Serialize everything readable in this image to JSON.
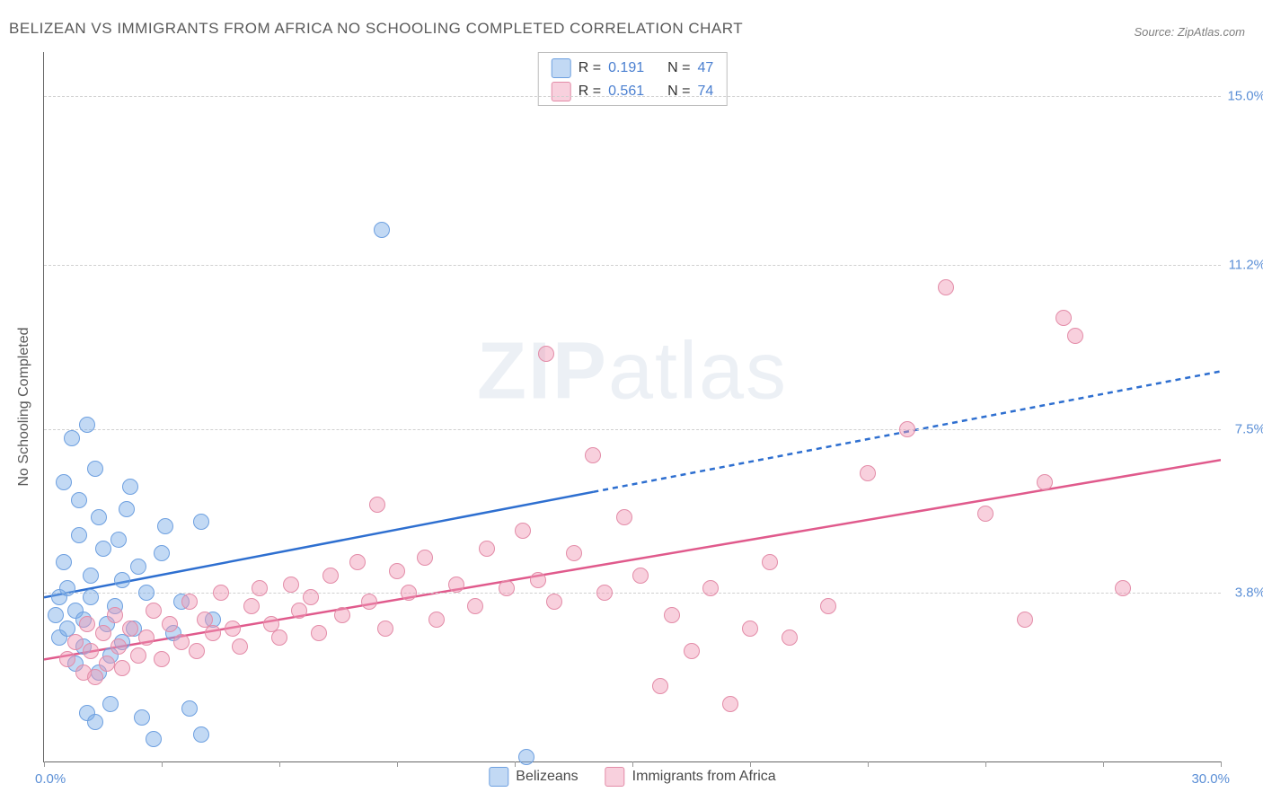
{
  "title": "BELIZEAN VS IMMIGRANTS FROM AFRICA NO SCHOOLING COMPLETED CORRELATION CHART",
  "source_label": "Source: ZipAtlas.com",
  "watermark": {
    "bold": "ZIP",
    "light": "atlas"
  },
  "y_axis_title": "No Schooling Completed",
  "xlim": [
    0.0,
    30.0
  ],
  "ylim": [
    0.0,
    16.0
  ],
  "x_min_label": "0.0%",
  "x_max_label": "30.0%",
  "y_ticks": [
    {
      "val": 3.8,
      "label": "3.8%"
    },
    {
      "val": 7.5,
      "label": "7.5%"
    },
    {
      "val": 11.2,
      "label": "11.2%"
    },
    {
      "val": 15.0,
      "label": "15.0%"
    }
  ],
  "x_tick_vals": [
    0,
    3,
    6,
    9,
    12,
    15,
    18,
    21,
    24,
    27,
    30
  ],
  "background_color": "#ffffff",
  "grid_color": "#d0d0d0",
  "axis_color": "#666666",
  "marker_radius": 8,
  "marker_opacity": 0.55,
  "line_width": 2.5,
  "series": [
    {
      "key": "belizeans",
      "label": "Belizeans",
      "fill": "rgba(120,170,230,0.45)",
      "stroke": "#6ea0e0",
      "line_color": "#2e6fd0",
      "r_value": "0.191",
      "n_value": "47",
      "trend": {
        "x1": 0,
        "y1": 3.7,
        "x2": 30,
        "y2": 8.8,
        "dash_after_x": 14
      },
      "points": [
        [
          0.3,
          3.3
        ],
        [
          0.4,
          2.8
        ],
        [
          0.4,
          3.7
        ],
        [
          0.5,
          4.5
        ],
        [
          0.6,
          3.0
        ],
        [
          0.6,
          3.9
        ],
        [
          0.7,
          7.3
        ],
        [
          0.8,
          2.2
        ],
        [
          0.8,
          3.4
        ],
        [
          0.9,
          5.1
        ],
        [
          0.9,
          5.9
        ],
        [
          1.0,
          2.6
        ],
        [
          1.0,
          3.2
        ],
        [
          1.1,
          7.6
        ],
        [
          1.1,
          1.1
        ],
        [
          1.2,
          4.2
        ],
        [
          1.2,
          3.7
        ],
        [
          1.3,
          6.6
        ],
        [
          1.4,
          2.0
        ],
        [
          1.4,
          5.5
        ],
        [
          1.5,
          4.8
        ],
        [
          1.6,
          3.1
        ],
        [
          1.7,
          2.4
        ],
        [
          1.7,
          1.3
        ],
        [
          1.8,
          3.5
        ],
        [
          1.9,
          5.0
        ],
        [
          2.0,
          4.1
        ],
        [
          2.0,
          2.7
        ],
        [
          2.2,
          6.2
        ],
        [
          2.3,
          3.0
        ],
        [
          2.4,
          4.4
        ],
        [
          2.5,
          1.0
        ],
        [
          2.6,
          3.8
        ],
        [
          2.8,
          0.5
        ],
        [
          3.0,
          4.7
        ],
        [
          3.1,
          5.3
        ],
        [
          3.3,
          2.9
        ],
        [
          3.5,
          3.6
        ],
        [
          3.7,
          1.2
        ],
        [
          4.0,
          5.4
        ],
        [
          4.0,
          0.6
        ],
        [
          4.3,
          3.2
        ],
        [
          0.5,
          6.3
        ],
        [
          1.3,
          0.9
        ],
        [
          2.1,
          5.7
        ],
        [
          8.6,
          12.0
        ],
        [
          12.3,
          0.1
        ]
      ]
    },
    {
      "key": "immigrants_africa",
      "label": "Immigrants from Africa",
      "fill": "rgba(240,150,180,0.45)",
      "stroke": "#e38ca8",
      "line_color": "#e05a8c",
      "r_value": "0.561",
      "n_value": "74",
      "trend": {
        "x1": 0,
        "y1": 2.3,
        "x2": 30,
        "y2": 6.8,
        "dash_after_x": null
      },
      "points": [
        [
          0.6,
          2.3
        ],
        [
          0.8,
          2.7
        ],
        [
          1.0,
          2.0
        ],
        [
          1.1,
          3.1
        ],
        [
          1.2,
          2.5
        ],
        [
          1.3,
          1.9
        ],
        [
          1.5,
          2.9
        ],
        [
          1.6,
          2.2
        ],
        [
          1.8,
          3.3
        ],
        [
          1.9,
          2.6
        ],
        [
          2.0,
          2.1
        ],
        [
          2.2,
          3.0
        ],
        [
          2.4,
          2.4
        ],
        [
          2.6,
          2.8
        ],
        [
          2.8,
          3.4
        ],
        [
          3.0,
          2.3
        ],
        [
          3.2,
          3.1
        ],
        [
          3.5,
          2.7
        ],
        [
          3.7,
          3.6
        ],
        [
          3.9,
          2.5
        ],
        [
          4.1,
          3.2
        ],
        [
          4.3,
          2.9
        ],
        [
          4.5,
          3.8
        ],
        [
          4.8,
          3.0
        ],
        [
          5.0,
          2.6
        ],
        [
          5.3,
          3.5
        ],
        [
          5.5,
          3.9
        ],
        [
          5.8,
          3.1
        ],
        [
          6.0,
          2.8
        ],
        [
          6.3,
          4.0
        ],
        [
          6.5,
          3.4
        ],
        [
          6.8,
          3.7
        ],
        [
          7.0,
          2.9
        ],
        [
          7.3,
          4.2
        ],
        [
          7.6,
          3.3
        ],
        [
          8.0,
          4.5
        ],
        [
          8.3,
          3.6
        ],
        [
          8.7,
          3.0
        ],
        [
          9.0,
          4.3
        ],
        [
          9.3,
          3.8
        ],
        [
          9.7,
          4.6
        ],
        [
          10.0,
          3.2
        ],
        [
          10.5,
          4.0
        ],
        [
          11.0,
          3.5
        ],
        [
          11.3,
          4.8
        ],
        [
          11.8,
          3.9
        ],
        [
          12.2,
          5.2
        ],
        [
          12.6,
          4.1
        ],
        [
          13.0,
          3.6
        ],
        [
          13.5,
          4.7
        ],
        [
          14.0,
          6.9
        ],
        [
          14.3,
          3.8
        ],
        [
          14.8,
          5.5
        ],
        [
          15.2,
          4.2
        ],
        [
          15.7,
          1.7
        ],
        [
          16.0,
          3.3
        ],
        [
          16.5,
          2.5
        ],
        [
          17.0,
          3.9
        ],
        [
          17.5,
          1.3
        ],
        [
          18.0,
          3.0
        ],
        [
          18.5,
          4.5
        ],
        [
          19.0,
          2.8
        ],
        [
          20.0,
          3.5
        ],
        [
          21.0,
          6.5
        ],
        [
          22.0,
          7.5
        ],
        [
          23.0,
          10.7
        ],
        [
          24.0,
          5.6
        ],
        [
          25.0,
          3.2
        ],
        [
          25.5,
          6.3
        ],
        [
          26.3,
          9.6
        ],
        [
          26.0,
          10.0
        ],
        [
          27.5,
          3.9
        ],
        [
          12.8,
          9.2
        ],
        [
          8.5,
          5.8
        ]
      ]
    }
  ],
  "legend_top_labels": {
    "r": "R  = ",
    "n": "N  = "
  }
}
